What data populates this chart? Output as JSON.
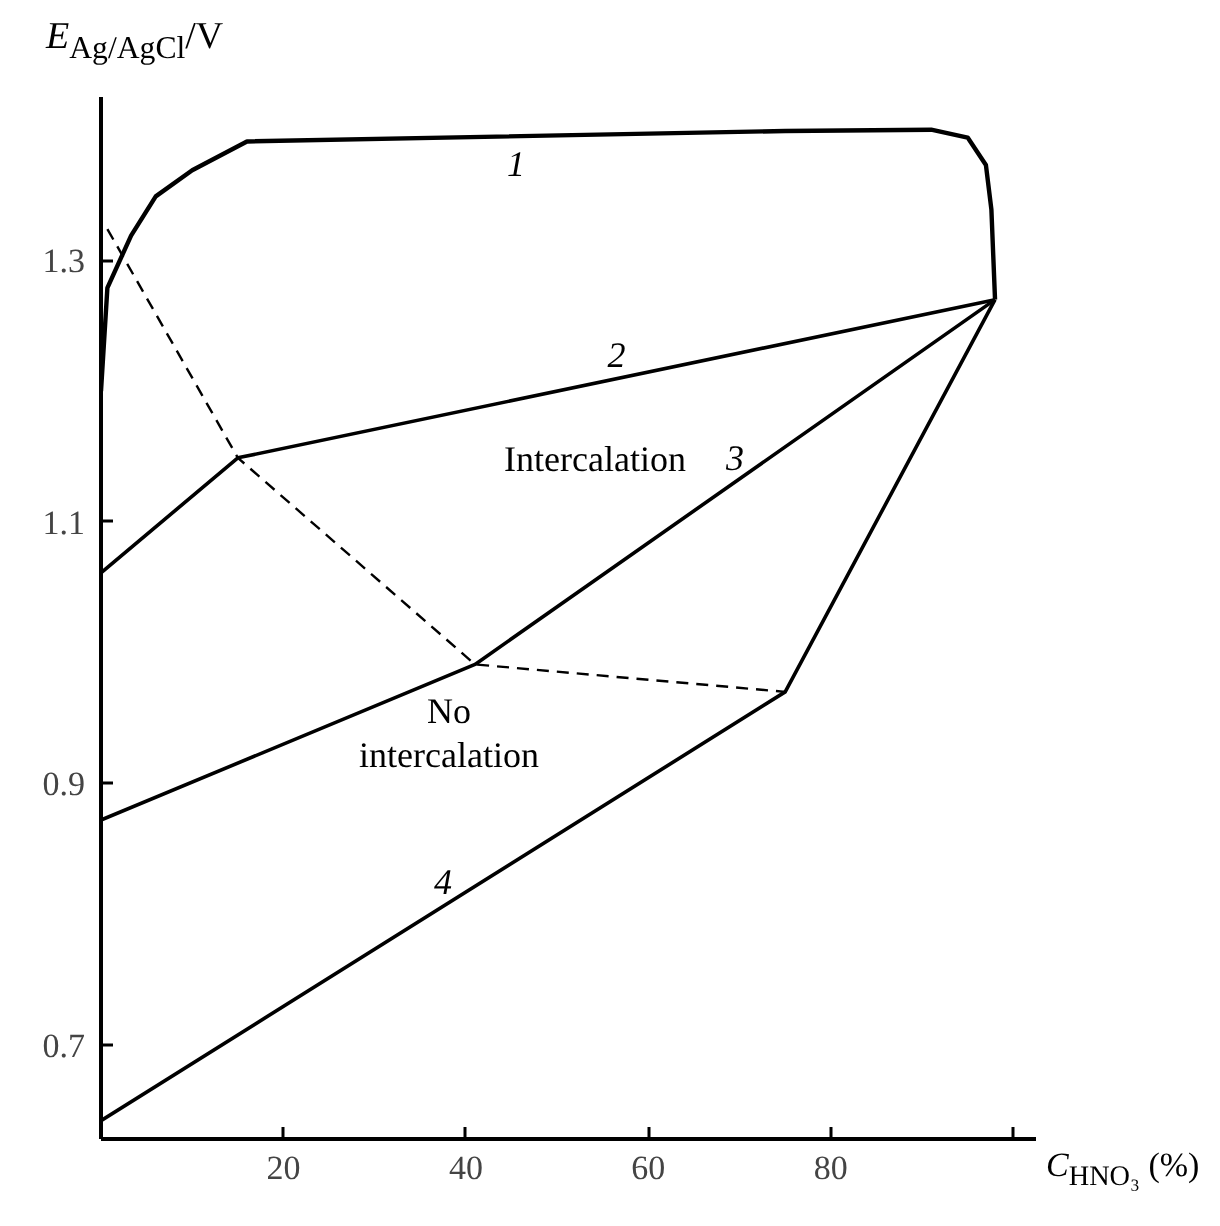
{
  "chart_data": {
    "type": "line",
    "xlabel": "C$_{HNO₃}$ (%)",
    "ylabel": "E$_{Ag/AgCl}$/V",
    "xlim": [
      0,
      102.6
    ],
    "ylim": [
      0.628,
      1.425
    ],
    "xticks": [
      20,
      40,
      60,
      80,
      {
        "value": 100,
        "label": null
      }
    ],
    "yticks": [
      0.7,
      0.9,
      1.1,
      1.3
    ],
    "grid": false,
    "legend": false,
    "marker": "none",
    "series": [
      {
        "name": "1",
        "color": "#000000",
        "line_style": "solid",
        "x": [
          0,
          0.7,
          3.3,
          6,
          10,
          16,
          75,
          91,
          95,
          97,
          97.6,
          98
        ],
        "values": [
          1.2,
          1.279,
          1.319,
          1.349,
          1.369,
          1.391,
          1.399,
          1.4,
          1.394,
          1.373,
          1.339,
          1.27
        ]
      },
      {
        "name": "2",
        "color": "#000000",
        "line_style": "solid",
        "x": [
          0,
          15,
          98
        ],
        "values": [
          1.061,
          1.149,
          1.27
        ]
      },
      {
        "name": "3",
        "color": "#000000",
        "line_style": "solid",
        "x": [
          0,
          41,
          98
        ],
        "values": [
          0.872,
          0.991,
          1.27
        ]
      },
      {
        "name": "4",
        "color": "#000000",
        "line_style": "solid",
        "x": [
          0,
          75,
          98
        ],
        "values": [
          0.642,
          0.97,
          1.27
        ]
      },
      {
        "color": "#000000",
        "line_style": "dashed",
        "x": [
          0.7,
          15,
          41,
          75
        ],
        "values": [
          1.324,
          1.149,
          0.991,
          0.97
        ]
      }
    ],
    "annotations": [
      "Intercalation",
      "No\nintercalation"
    ]
  }
}
